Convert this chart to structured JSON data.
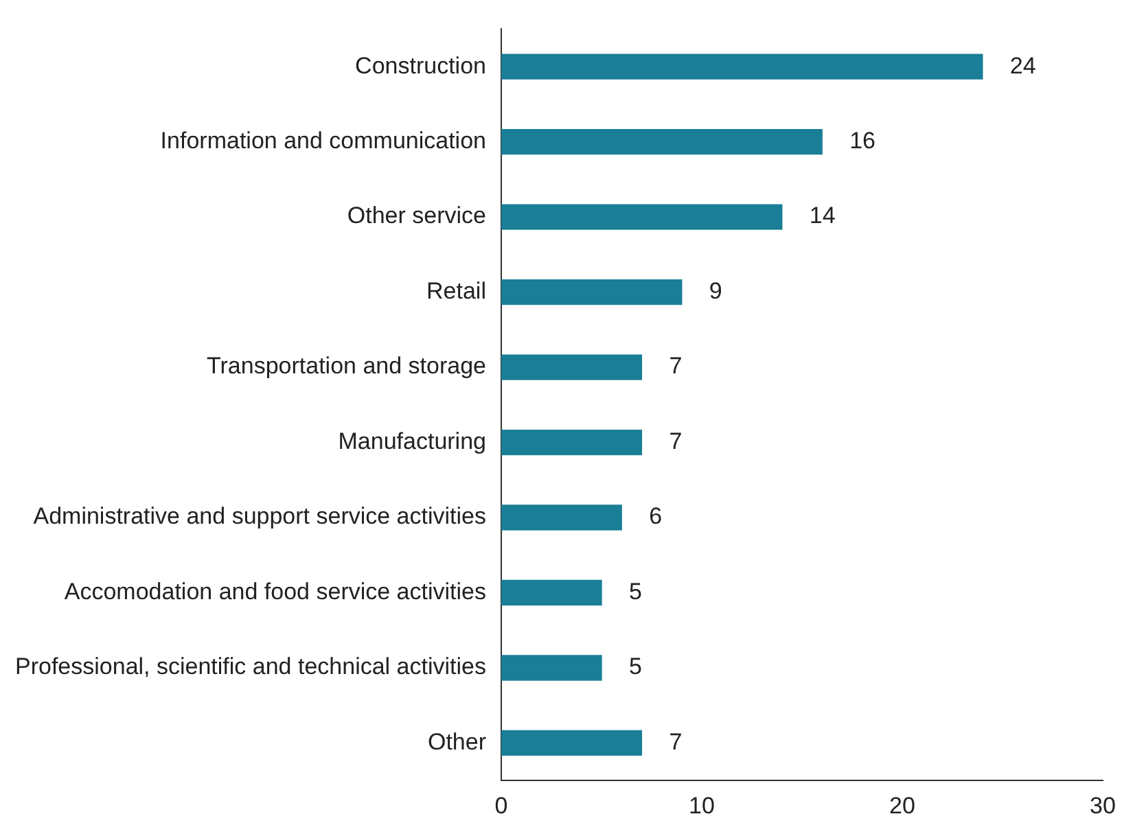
{
  "chart_data": {
    "type": "bar",
    "orientation": "horizontal",
    "categories": [
      "Construction",
      "Information and communication",
      "Other service",
      "Retail",
      "Transportation and storage",
      "Manufacturing",
      "Administrative and support service activities",
      "Accomodation and food service activities",
      "Professional, scientific and technical activities",
      "Other"
    ],
    "values": [
      24,
      16,
      14,
      9,
      7,
      7,
      6,
      5,
      5,
      7
    ],
    "color": "#1a7f96",
    "xlim": [
      0,
      30
    ],
    "xticks": [
      0,
      10,
      20,
      30
    ],
    "grid": false,
    "legend": false,
    "data_labels": true
  }
}
